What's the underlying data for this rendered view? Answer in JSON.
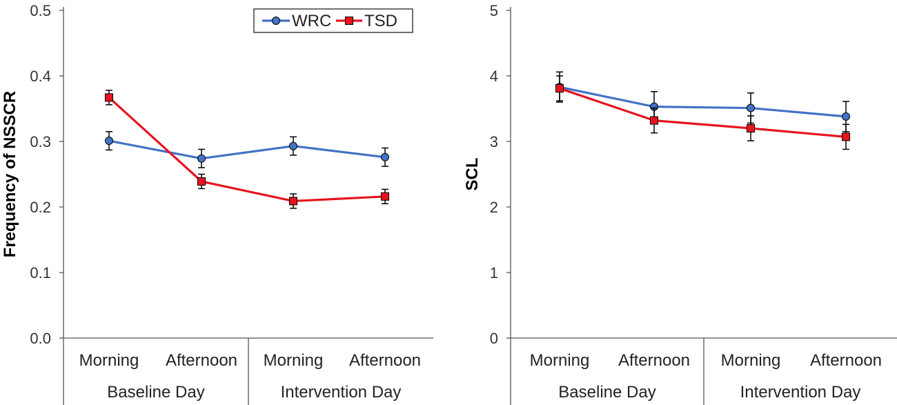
{
  "chart_data": [
    {
      "type": "line",
      "ylabel": "Frequency of NSSCR",
      "ylim": [
        0,
        0.5
      ],
      "yticks": [
        "0.0",
        "0.1",
        "0.2",
        "0.3",
        "0.4",
        "0.5"
      ],
      "categories": [
        "Morning",
        "Afternoon",
        "Morning",
        "Afternoon"
      ],
      "groups": [
        "Baseline Day",
        "Intervention Day"
      ],
      "legend_position": "top-right",
      "series": [
        {
          "name": "WRC",
          "color": "#4472C4",
          "marker": "circle",
          "values": [
            0.301,
            0.274,
            0.293,
            0.276
          ],
          "errors": [
            0.014,
            0.014,
            0.014,
            0.014
          ]
        },
        {
          "name": "TSD",
          "color": "#E8131F",
          "marker": "square",
          "values": [
            0.367,
            0.239,
            0.209,
            0.216
          ],
          "errors": [
            0.011,
            0.011,
            0.011,
            0.011
          ]
        }
      ]
    },
    {
      "type": "line",
      "ylabel": "SCL",
      "ylim": [
        0,
        5
      ],
      "yticks": [
        "0",
        "1",
        "2",
        "3",
        "4",
        "5"
      ],
      "categories": [
        "Morning",
        "Afternoon",
        "Morning",
        "Afternoon"
      ],
      "groups": [
        "Baseline Day",
        "Intervention Day"
      ],
      "series": [
        {
          "name": "WRC",
          "color": "#4472C4",
          "marker": "circle",
          "values": [
            3.83,
            3.53,
            3.51,
            3.38
          ],
          "errors": [
            0.23,
            0.23,
            0.23,
            0.23
          ]
        },
        {
          "name": "TSD",
          "color": "#E8131F",
          "marker": "square",
          "values": [
            3.81,
            3.32,
            3.2,
            3.07
          ],
          "errors": [
            0.19,
            0.19,
            0.19,
            0.19
          ]
        }
      ]
    }
  ]
}
